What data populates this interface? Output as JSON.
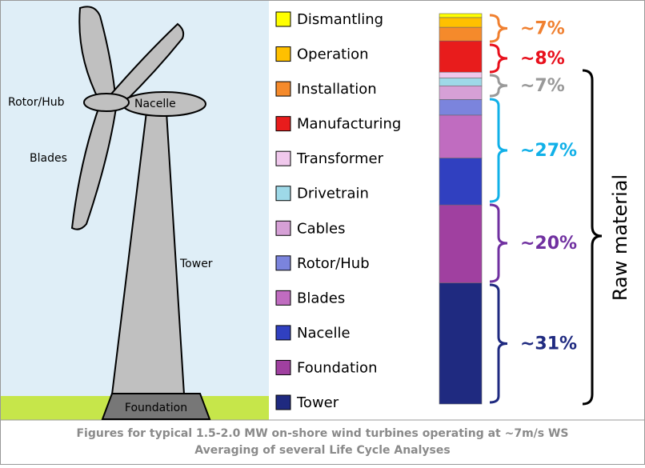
{
  "chart_data": {
    "type": "stacked-bar",
    "series": [
      {
        "name": "Dismantling",
        "color": "#ffff00",
        "values": [
          1
        ]
      },
      {
        "name": "Operation",
        "color": "#ffc000",
        "values": [
          2.5
        ]
      },
      {
        "name": "Installation",
        "color": "#f58a2b",
        "values": [
          3.5
        ]
      },
      {
        "name": "Manufacturing",
        "color": "#e81c1c",
        "values": [
          8
        ]
      },
      {
        "name": "Transformer",
        "color": "#f0c8ec",
        "values": [
          1.5
        ]
      },
      {
        "name": "Drivetrain",
        "color": "#9ed9e8",
        "values": [
          2
        ]
      },
      {
        "name": "Cables",
        "color": "#d6a0d6",
        "values": [
          3.5
        ]
      },
      {
        "name": "Rotor/Hub",
        "color": "#7b84dd",
        "values": [
          4
        ]
      },
      {
        "name": "Blades",
        "color": "#c06cc0",
        "values": [
          11
        ]
      },
      {
        "name": "Nacelle",
        "color": "#3040c0",
        "values": [
          12
        ]
      },
      {
        "name": "Foundation",
        "color": "#a040a0",
        "values": [
          20
        ]
      },
      {
        "name": "Tower",
        "color": "#1f2a80",
        "values": [
          31
        ]
      }
    ],
    "annotations": [
      {
        "label": "~7%",
        "color": "#f08030"
      },
      {
        "label": "~8%",
        "color": "#e8101c"
      },
      {
        "label": "~7%",
        "color": "#999999"
      },
      {
        "label": "~27%",
        "color": "#10b0e8"
      },
      {
        "label": "~20%",
        "color": "#7030a0"
      },
      {
        "label": "~31%",
        "color": "#1f2a80"
      }
    ],
    "bracket_label": "Raw material",
    "turbine_labels": [
      "Rotor/Hub",
      "Nacelle",
      "Blades",
      "Tower",
      "Foundation"
    ],
    "caption": [
      "Figures for typical 1.5-2.0 MW on-shore wind turbines operating at ~7m/s WS",
      "Averaging of several Life Cycle Analyses"
    ]
  }
}
